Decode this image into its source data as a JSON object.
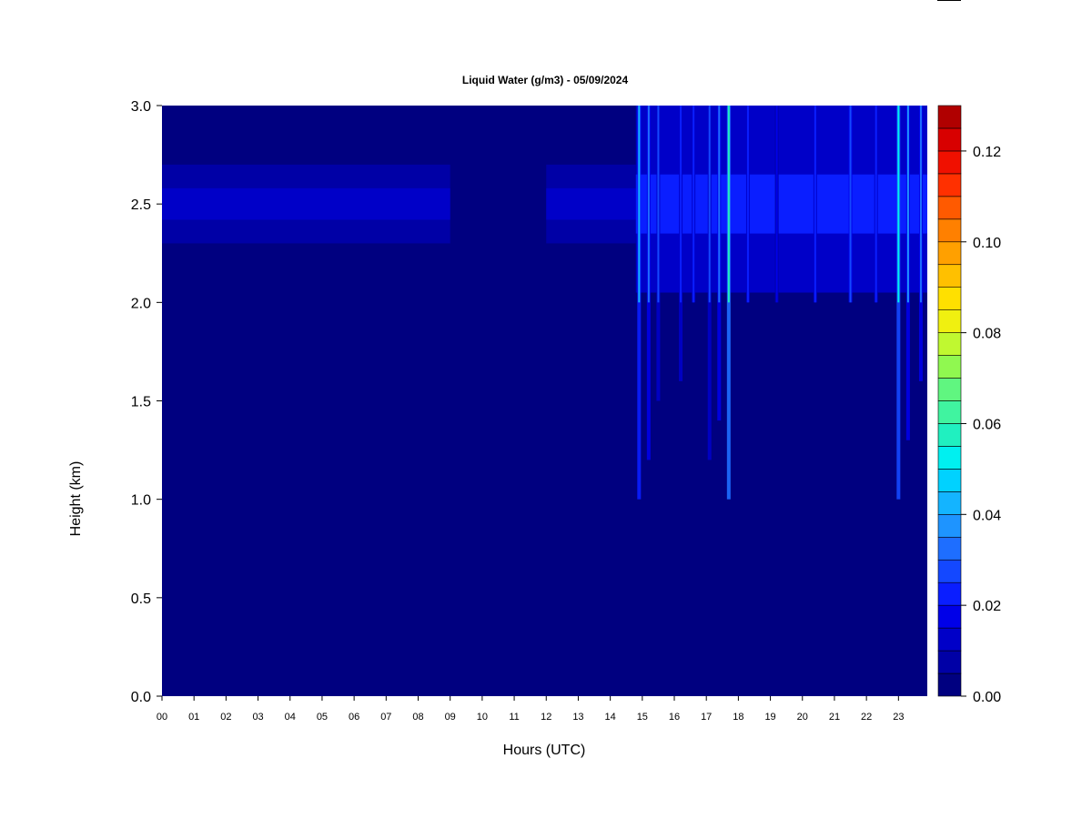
{
  "chart_data": {
    "type": "heatmap",
    "title": "Liquid Water (g/m3) - 05/09/2024",
    "xlabel": "Hours (UTC)",
    "ylabel": "Height (km)",
    "xlim": [
      0,
      23.9
    ],
    "ylim": [
      0,
      3.0
    ],
    "x_ticks": [
      "00",
      "01",
      "02",
      "03",
      "04",
      "05",
      "06",
      "07",
      "08",
      "09",
      "10",
      "11",
      "12",
      "13",
      "14",
      "15",
      "16",
      "17",
      "18",
      "19",
      "20",
      "21",
      "22",
      "23"
    ],
    "y_ticks": [
      "0.0",
      "0.5",
      "1.0",
      "1.5",
      "2.0",
      "2.5",
      "3.0"
    ],
    "colorbar": {
      "min": 0.0,
      "max": 0.13,
      "step": 0.005,
      "tick_values": [
        0.0,
        0.02,
        0.04,
        0.06,
        0.08,
        0.1,
        0.12
      ],
      "tick_labels": [
        "0.00",
        "0.02",
        "0.04",
        "0.06",
        "0.08",
        "0.10",
        "0.12"
      ],
      "colors": [
        "#000080",
        "#0000a6",
        "#0000c8",
        "#0000e8",
        "#0a1eff",
        "#1448ff",
        "#1e6eff",
        "#1e94ff",
        "#14b4ff",
        "#00d2ff",
        "#00f0f0",
        "#20f0c0",
        "#40f4a0",
        "#60f680",
        "#90f850",
        "#c0f830",
        "#f0f010",
        "#ffe000",
        "#ffc000",
        "#ffa000",
        "#ff8000",
        "#ff5a00",
        "#ff3000",
        "#f01000",
        "#d80000",
        "#b00000",
        "#800000"
      ]
    },
    "background_value": 0.0,
    "bands": [
      {
        "x": [
          0,
          9.0
        ],
        "y": [
          2.3,
          2.7
        ],
        "value": 0.009,
        "core_y": [
          2.42,
          2.58
        ],
        "core_value": 0.014
      },
      {
        "x": [
          12.0,
          14.8
        ],
        "y": [
          2.3,
          2.7
        ],
        "value": 0.008,
        "core_y": [
          2.42,
          2.58
        ],
        "core_value": 0.012
      },
      {
        "x": [
          14.8,
          23.9
        ],
        "y": [
          2.05,
          3.0
        ],
        "value": 0.012,
        "core_y": [
          2.35,
          2.65
        ],
        "core_value": 0.02
      }
    ],
    "spikes": [
      {
        "x": 14.9,
        "y": [
          1.0,
          3.0
        ],
        "value": 0.04
      },
      {
        "x": 15.2,
        "y": [
          1.2,
          3.0
        ],
        "value": 0.03
      },
      {
        "x": 15.5,
        "y": [
          1.5,
          3.0
        ],
        "value": 0.025
      },
      {
        "x": 16.2,
        "y": [
          1.6,
          3.0
        ],
        "value": 0.022
      },
      {
        "x": 16.6,
        "y": [
          2.0,
          3.0
        ],
        "value": 0.02
      },
      {
        "x": 17.1,
        "y": [
          1.2,
          3.0
        ],
        "value": 0.025
      },
      {
        "x": 17.4,
        "y": [
          1.4,
          3.0
        ],
        "value": 0.03
      },
      {
        "x": 17.7,
        "y": [
          1.0,
          3.0
        ],
        "value": 0.055
      },
      {
        "x": 18.3,
        "y": [
          2.0,
          3.0
        ],
        "value": 0.02
      },
      {
        "x": 19.2,
        "y": [
          2.0,
          3.0
        ],
        "value": 0.018
      },
      {
        "x": 20.4,
        "y": [
          2.0,
          3.0
        ],
        "value": 0.022
      },
      {
        "x": 21.5,
        "y": [
          2.0,
          3.0
        ],
        "value": 0.028
      },
      {
        "x": 22.3,
        "y": [
          2.0,
          3.0
        ],
        "value": 0.02
      },
      {
        "x": 23.0,
        "y": [
          1.0,
          3.0
        ],
        "value": 0.05
      },
      {
        "x": 23.3,
        "y": [
          1.3,
          3.0
        ],
        "value": 0.035
      },
      {
        "x": 23.7,
        "y": [
          1.6,
          3.0
        ],
        "value": 0.03
      }
    ]
  }
}
